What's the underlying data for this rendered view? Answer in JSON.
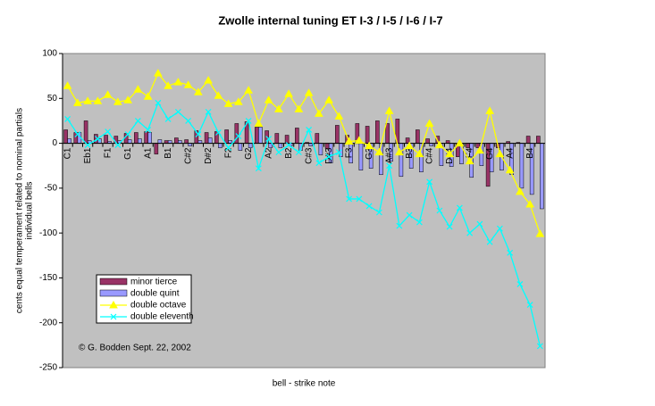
{
  "chart_data": {
    "type": "bar",
    "title": "Zwolle internal tuning ET I-3 / I-5 / I-6 / I-7",
    "y_label_lines": [
      "cents equal temperament related to nominal partials",
      "individual bells"
    ],
    "x_label": "bell - strike note",
    "annotation": "© G. Bodden Sept. 22, 2002",
    "categories": [
      "C1",
      null,
      "Eb1",
      null,
      "F1",
      null,
      "G1",
      null,
      "A1",
      null,
      "B1",
      null,
      "C#2",
      null,
      "D#2",
      null,
      "F2",
      null,
      "G2",
      null,
      "A2",
      null,
      "B2",
      null,
      "C#3",
      null,
      "D#3",
      null,
      "F3",
      null,
      "G3",
      null,
      "A#3",
      null,
      "B3",
      null,
      "C#4",
      null,
      "D#4",
      null,
      "F4",
      null,
      "G4",
      null,
      "A4",
      null,
      "B4",
      null
    ],
    "series": [
      {
        "name": "minor tierce",
        "type": "bar",
        "color": "#993366",
        "values": [
          15,
          12,
          25,
          10,
          9,
          8,
          11,
          12,
          13,
          -12,
          3,
          6,
          4,
          14,
          12,
          13,
          15,
          22,
          24,
          18,
          14,
          11,
          9,
          17,
          1,
          11,
          -6,
          20,
          9,
          22,
          19,
          25,
          22,
          27,
          6,
          15,
          5,
          8,
          3,
          -15,
          -5,
          -5,
          -48,
          -5,
          2,
          1,
          8,
          8
        ]
      },
      {
        "name": "double quint",
        "type": "bar",
        "color": "#9999ff",
        "values": [
          5,
          12,
          3,
          5,
          2,
          3,
          4,
          5,
          12,
          4,
          3,
          3,
          -3,
          3,
          6,
          -5,
          3,
          -8,
          -5,
          18,
          -5,
          -5,
          -3,
          -8,
          -3,
          -13,
          -22,
          -15,
          -22,
          -30,
          -28,
          -35,
          -20,
          -37,
          -28,
          -32,
          -3,
          -25,
          -26,
          -23,
          -38,
          -25,
          -32,
          -30,
          -35,
          -50,
          -57,
          -73
        ]
      },
      {
        "name": "double octave",
        "type": "line",
        "marker": "triangle",
        "color": "#ffff00",
        "values": [
          64,
          45,
          47,
          47,
          54,
          46,
          48,
          60,
          52,
          78,
          64,
          68,
          65,
          57,
          70,
          53,
          44,
          46,
          59,
          22,
          48,
          38,
          55,
          38,
          56,
          33,
          48,
          30,
          2,
          3,
          -3,
          -10,
          36,
          -10,
          -3,
          -12,
          22,
          -2,
          -12,
          0,
          -20,
          -8,
          36,
          -12,
          -30,
          -54,
          -68,
          -101
        ]
      },
      {
        "name": "double eleventh",
        "type": "line",
        "marker": "x",
        "color": "#00ffff",
        "values": [
          27,
          10,
          -2,
          5,
          13,
          -2,
          10,
          25,
          15,
          45,
          27,
          35,
          25,
          10,
          35,
          12,
          -5,
          8,
          25,
          -28,
          5,
          -10,
          -2,
          -10,
          15,
          -22,
          -15,
          -10,
          -62,
          -62,
          -70,
          -77,
          -25,
          -92,
          -80,
          -88,
          -43,
          -75,
          -93,
          -72,
          -100,
          -90,
          -110,
          -95,
          -122,
          -157,
          -180,
          -226
        ]
      }
    ],
    "ylim": [
      -250,
      100
    ],
    "yticks": [
      -250,
      -200,
      -150,
      -100,
      -50,
      0,
      50,
      100
    ],
    "grid": false
  }
}
